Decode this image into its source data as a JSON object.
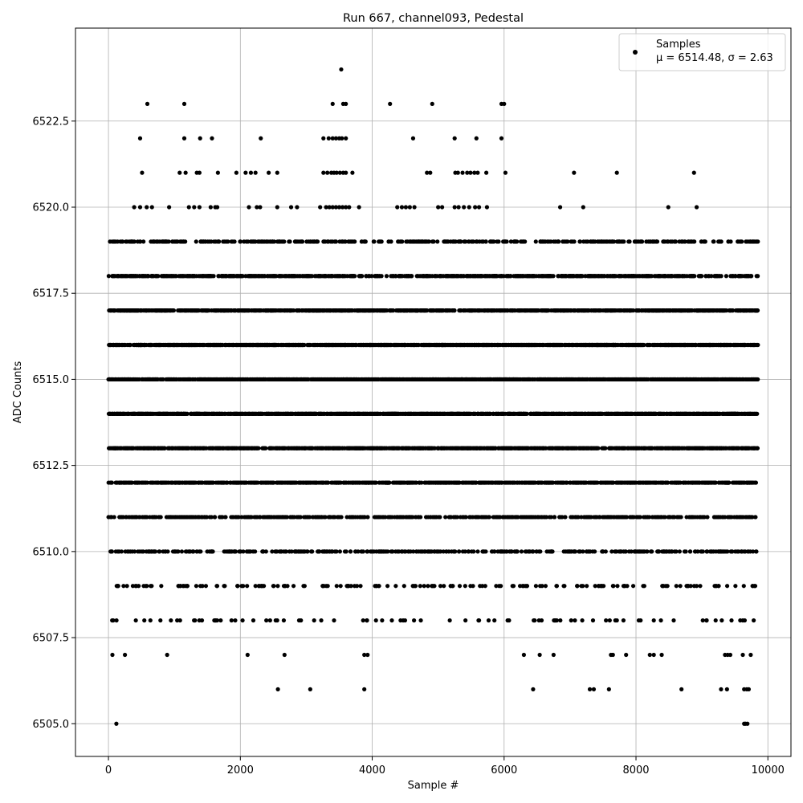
{
  "chart_data": {
    "type": "scatter",
    "title": "Run 667, channel093, Pedestal",
    "xlabel": "Sample #",
    "ylabel": "ADC Counts",
    "xlim": [
      -500,
      10350
    ],
    "ylim": [
      6504.05,
      6525.2
    ],
    "x_ticks": [
      0,
      2000,
      4000,
      6000,
      8000,
      10000
    ],
    "y_ticks": [
      6505.0,
      6507.5,
      6510.0,
      6512.5,
      6515.0,
      6517.5,
      6520.0,
      6522.5
    ],
    "x_tick_labels": [
      "0",
      "2000",
      "4000",
      "6000",
      "8000",
      "10000"
    ],
    "y_tick_labels": [
      "6505.0",
      "6507.5",
      "6510.0",
      "6512.5",
      "6515.0",
      "6517.5",
      "6520.0",
      "6522.5"
    ],
    "grid": true,
    "legend": {
      "placement": "top-right",
      "label": "Samples",
      "stats": "μ = 6514.48, σ = 2.63"
    },
    "series": [
      {
        "name": "Samples",
        "color": "#000000",
        "marker": "dot",
        "summary": {
          "count": 9850,
          "mean": 6514.48,
          "std": 2.63
        },
        "points": [
          [
            3530,
            6524
          ],
          [
            590,
            6523
          ],
          [
            1150,
            6523
          ],
          [
            3400,
            6523
          ],
          [
            3560,
            6523
          ],
          [
            3600,
            6523
          ],
          [
            4270,
            6523
          ],
          [
            4910,
            6523
          ],
          [
            5960,
            6523
          ],
          [
            6000,
            6523
          ],
          [
            480,
            6522
          ],
          [
            1150,
            6522
          ],
          [
            1390,
            6522
          ],
          [
            1570,
            6522
          ],
          [
            2310,
            6522
          ],
          [
            3260,
            6522
          ],
          [
            3340,
            6522
          ],
          [
            3400,
            6522
          ],
          [
            3450,
            6522
          ],
          [
            3500,
            6522
          ],
          [
            3540,
            6522
          ],
          [
            3600,
            6522
          ],
          [
            4620,
            6522
          ],
          [
            5250,
            6522
          ],
          [
            5580,
            6522
          ],
          [
            5960,
            6522
          ],
          [
            510,
            6521
          ],
          [
            1080,
            6521
          ],
          [
            1170,
            6521
          ],
          [
            1340,
            6521
          ],
          [
            1380,
            6521
          ],
          [
            1660,
            6521
          ],
          [
            1940,
            6521
          ],
          [
            2080,
            6521
          ],
          [
            2160,
            6521
          ],
          [
            2230,
            6521
          ],
          [
            2430,
            6521
          ],
          [
            2560,
            6521
          ],
          [
            3260,
            6521
          ],
          [
            3320,
            6521
          ],
          [
            3380,
            6521
          ],
          [
            3420,
            6521
          ],
          [
            3460,
            6521
          ],
          [
            3510,
            6521
          ],
          [
            3560,
            6521
          ],
          [
            3600,
            6521
          ],
          [
            3700,
            6521
          ],
          [
            4830,
            6521
          ],
          [
            4880,
            6521
          ],
          [
            5260,
            6521
          ],
          [
            5300,
            6521
          ],
          [
            5370,
            6521
          ],
          [
            5440,
            6521
          ],
          [
            5490,
            6521
          ],
          [
            5550,
            6521
          ],
          [
            5600,
            6521
          ],
          [
            5730,
            6521
          ],
          [
            6020,
            6521
          ],
          [
            7060,
            6521
          ],
          [
            7710,
            6521
          ],
          [
            8880,
            6521
          ],
          [
            390,
            6520
          ],
          [
            480,
            6520
          ],
          [
            580,
            6520
          ],
          [
            660,
            6520
          ],
          [
            920,
            6520
          ],
          [
            1220,
            6520
          ],
          [
            1300,
            6520
          ],
          [
            1380,
            6520
          ],
          [
            1550,
            6520
          ],
          [
            1620,
            6520
          ],
          [
            1650,
            6520
          ],
          [
            2130,
            6520
          ],
          [
            2250,
            6520
          ],
          [
            2300,
            6520
          ],
          [
            2560,
            6520
          ],
          [
            2770,
            6520
          ],
          [
            2860,
            6520
          ],
          [
            3210,
            6520
          ],
          [
            3300,
            6520
          ],
          [
            3350,
            6520
          ],
          [
            3400,
            6520
          ],
          [
            3450,
            6520
          ],
          [
            3500,
            6520
          ],
          [
            3550,
            6520
          ],
          [
            3600,
            6520
          ],
          [
            3650,
            6520
          ],
          [
            3800,
            6520
          ],
          [
            4380,
            6520
          ],
          [
            4450,
            6520
          ],
          [
            4510,
            6520
          ],
          [
            4570,
            6520
          ],
          [
            4640,
            6520
          ],
          [
            5000,
            6520
          ],
          [
            5060,
            6520
          ],
          [
            5250,
            6520
          ],
          [
            5310,
            6520
          ],
          [
            5390,
            6520
          ],
          [
            5470,
            6520
          ],
          [
            5560,
            6520
          ],
          [
            5620,
            6520
          ],
          [
            5740,
            6520
          ],
          [
            6850,
            6520
          ],
          [
            7200,
            6520
          ],
          [
            8490,
            6520
          ],
          [
            8920,
            6520
          ],
          [
            120,
            6505
          ],
          [
            9640,
            6505
          ],
          [
            9660,
            6505
          ],
          [
            9690,
            6505
          ],
          [
            60,
            6507
          ],
          [
            250,
            6507
          ],
          [
            890,
            6507
          ],
          [
            2110,
            6507
          ],
          [
            2670,
            6507
          ],
          [
            3880,
            6507
          ],
          [
            3930,
            6507
          ],
          [
            6300,
            6507
          ],
          [
            6540,
            6507
          ],
          [
            6750,
            6507
          ],
          [
            7620,
            6507
          ],
          [
            7650,
            6507
          ],
          [
            7850,
            6507
          ],
          [
            8210,
            6507
          ],
          [
            8270,
            6507
          ],
          [
            8390,
            6507
          ],
          [
            9350,
            6507
          ],
          [
            9390,
            6507
          ],
          [
            9430,
            6507
          ],
          [
            9620,
            6507
          ],
          [
            9740,
            6507
          ],
          [
            2570,
            6506
          ],
          [
            3060,
            6506
          ],
          [
            3880,
            6506
          ],
          [
            6440,
            6506
          ],
          [
            7300,
            6506
          ],
          [
            7360,
            6506
          ],
          [
            7590,
            6506
          ],
          [
            8690,
            6506
          ],
          [
            9290,
            6506
          ],
          [
            9380,
            6506
          ],
          [
            9640,
            6506
          ],
          [
            9680,
            6506
          ],
          [
            9710,
            6506
          ]
        ]
      }
    ]
  }
}
